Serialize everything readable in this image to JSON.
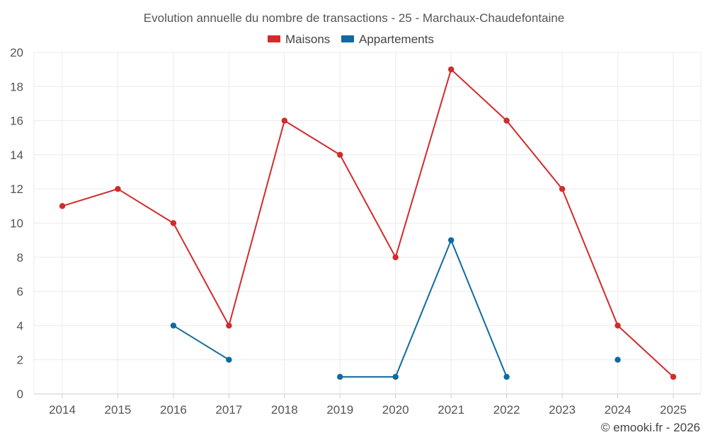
{
  "chart_data": {
    "type": "line",
    "title": "Evolution annuelle du nombre de transactions - 25 - Marchaux-Chaudefontaine",
    "categories": [
      "2014",
      "2015",
      "2016",
      "2017",
      "2018",
      "2019",
      "2020",
      "2021",
      "2022",
      "2023",
      "2024",
      "2025"
    ],
    "ylim": [
      0,
      20
    ],
    "yticks": [
      0,
      2,
      4,
      6,
      8,
      10,
      12,
      14,
      16,
      18,
      20
    ],
    "grid": true,
    "legend_position": "top-center",
    "series": [
      {
        "name": "Maisons",
        "color": "#d22b2b",
        "values": [
          11,
          12,
          10,
          4,
          16,
          14,
          8,
          19,
          16,
          12,
          4,
          1
        ]
      },
      {
        "name": "Appartements",
        "color": "#0f6aa0",
        "values": [
          null,
          null,
          4,
          2,
          null,
          1,
          1,
          9,
          1,
          null,
          2,
          null
        ]
      }
    ]
  },
  "credit": "© emooki.fr - 2026"
}
